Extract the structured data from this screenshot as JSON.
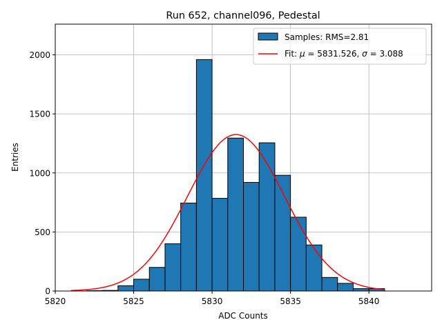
{
  "chart_data": {
    "type": "bar",
    "title": "Run 652, channel096, Pedestal",
    "xlabel": "ADC Counts",
    "ylabel": "Entries",
    "xlim": [
      5820,
      5844
    ],
    "ylim": [
      0,
      2260
    ],
    "xticks": [
      5820,
      5825,
      5830,
      5835,
      5840
    ],
    "yticks": [
      0,
      500,
      1000,
      1500,
      2000
    ],
    "grid": true,
    "bin_width": 1,
    "histogram": {
      "name": "Samples: RMS=2.81",
      "color": "#1f77b4",
      "edge_color": "#000000",
      "bins": [
        {
          "start": 5822,
          "count": 3
        },
        {
          "start": 5823,
          "count": 5
        },
        {
          "start": 5824,
          "count": 45
        },
        {
          "start": 5825,
          "count": 100
        },
        {
          "start": 5826,
          "count": 200
        },
        {
          "start": 5827,
          "count": 400
        },
        {
          "start": 5828,
          "count": 745
        },
        {
          "start": 5829,
          "count": 1960
        },
        {
          "start": 5830,
          "count": 785
        },
        {
          "start": 5831,
          "count": 1295
        },
        {
          "start": 5832,
          "count": 920
        },
        {
          "start": 5833,
          "count": 1255
        },
        {
          "start": 5834,
          "count": 980
        },
        {
          "start": 5835,
          "count": 625
        },
        {
          "start": 5836,
          "count": 390
        },
        {
          "start": 5837,
          "count": 115
        },
        {
          "start": 5838,
          "count": 65
        },
        {
          "start": 5839,
          "count": 20
        },
        {
          "start": 5840,
          "count": 20
        }
      ]
    },
    "fit": {
      "name": "Fit: μ = 5831.526, σ = 3.088",
      "mu": 5831.526,
      "sigma": 3.088,
      "amplitude": 1325,
      "x_range": [
        5821,
        5841
      ],
      "color": "#ff0000"
    },
    "legend": {
      "position": "top-right",
      "hist_label_prefix": "Samples: RMS=",
      "hist_rms": "2.81",
      "fit_label_prefix": "Fit: ",
      "fit_mu_sym": "μ",
      "fit_mu_text": " = 5831.526, ",
      "fit_sigma_sym": "σ",
      "fit_sigma_text": " = 3.088"
    }
  }
}
